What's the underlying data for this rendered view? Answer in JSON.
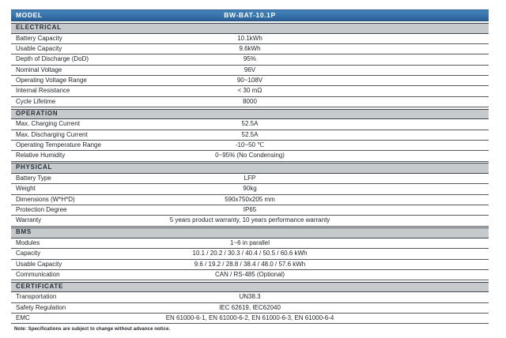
{
  "colors": {
    "header_blue": "#3a76ad",
    "header_blue_light": "#4583b8",
    "header_blue_dark": "#2b5f95",
    "header_blue_edge": "#1f4d7e",
    "section_gray": "#c6cacd",
    "section_border": "#3d444e",
    "row_border": "#54585d",
    "text_dark": "#1f2326",
    "section_text": "#2a3036",
    "header_text": "#ffffff"
  },
  "table": {
    "model_row": {
      "label": "MODEL",
      "value": "BW-BAT-10.1P"
    },
    "rows": [
      {
        "type": "section",
        "label": "ELECTRICAL"
      },
      {
        "type": "data",
        "label": "Battery Capacity",
        "value": "10.1kWh"
      },
      {
        "type": "data",
        "label": "Usable Capacity",
        "value": "9.6kWh"
      },
      {
        "type": "data",
        "label": "Depth of Discharge (DoD)",
        "value": "95%"
      },
      {
        "type": "data",
        "label": "Nominal Voltage",
        "value": "96V"
      },
      {
        "type": "data",
        "label": "Operating Voltage Range",
        "value": "90~108V"
      },
      {
        "type": "data",
        "label": "Internal Resistance",
        "value": "< 30 mΩ"
      },
      {
        "type": "data",
        "label": "Cycle Lifetime",
        "value": "8000"
      },
      {
        "type": "section",
        "label": "OPERATION"
      },
      {
        "type": "data",
        "label": "Max. Charging Current",
        "value": "52.5A"
      },
      {
        "type": "data",
        "label": "Max. Discharging Current",
        "value": "52.5A"
      },
      {
        "type": "data",
        "label": "Operating Temperature Range",
        "value": "-10~50 ℃"
      },
      {
        "type": "data",
        "label": "Relative Humidity",
        "value": "0~95% (No Condensing)"
      },
      {
        "type": "section",
        "label": "PHYSICAL"
      },
      {
        "type": "data",
        "label": "Battery Type",
        "value": "LFP"
      },
      {
        "type": "data",
        "label": "Weight",
        "value": "90kg"
      },
      {
        "type": "data",
        "label": "Dimensions (W*H*D)",
        "value": "590x750x205 mm"
      },
      {
        "type": "data",
        "label": "Protection Degree",
        "value": "IP65"
      },
      {
        "type": "data",
        "label": "Warranty",
        "value": "5 years product warranty, 10 years performance warranty"
      },
      {
        "type": "section",
        "label": "BMS"
      },
      {
        "type": "data",
        "label": "Modules",
        "value": "1~6 in parallel"
      },
      {
        "type": "data",
        "label": "Capacity",
        "value": "10.1 / 20.2 / 30.3 / 40.4 / 50.5 / 60.6 kWh"
      },
      {
        "type": "data",
        "label": "Usable Capacity",
        "value": "9.6 / 19.2 / 28.8 / 38.4 / 48.0 / 57.6 kWh"
      },
      {
        "type": "data",
        "label": "Communication",
        "value": "CAN / RS-485 (Optional)"
      },
      {
        "type": "section",
        "label": "CERTIFICATE"
      },
      {
        "type": "data",
        "label": "Transportation",
        "value": "UN38.3"
      },
      {
        "type": "data",
        "label": "Safety Regulation",
        "value": "IEC 62619, IEC62040"
      },
      {
        "type": "data",
        "label": "EMC",
        "value": "EN 61000-6-1, EN 61000-6-2, EN 61000-6-3, EN 61000-6-4"
      }
    ]
  },
  "note": "Note: Specifications are subject to change without advance notice."
}
